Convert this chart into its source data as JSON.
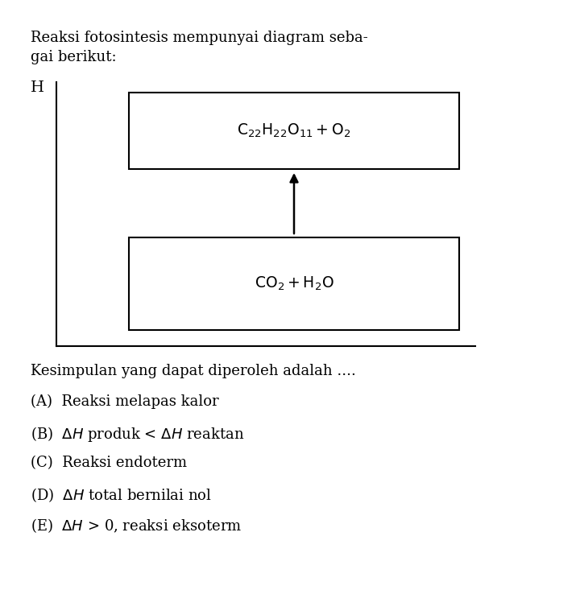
{
  "background_color": "#ffffff",
  "title_line1": "Reaksi fotosintesis mempunyai diagram seba-",
  "title_line2": "gai berikut:",
  "axis_label_H": "H",
  "question": "Kesimpulan yang dapat diperoleh adalah ....",
  "choices": [
    "(A)  Reaksi melapas kalor",
    "(B)  $\\Delta H$ produk < $\\Delta H$ reaktan",
    "(C)  Reaksi endoterm",
    "(D)  $\\Delta H$ total bernilai nol",
    "(E)  $\\Delta H$ > 0, reaksi eksoterm"
  ],
  "font_size_title": 13,
  "font_size_body": 13,
  "font_size_axis": 14,
  "font_size_box": 13.5
}
